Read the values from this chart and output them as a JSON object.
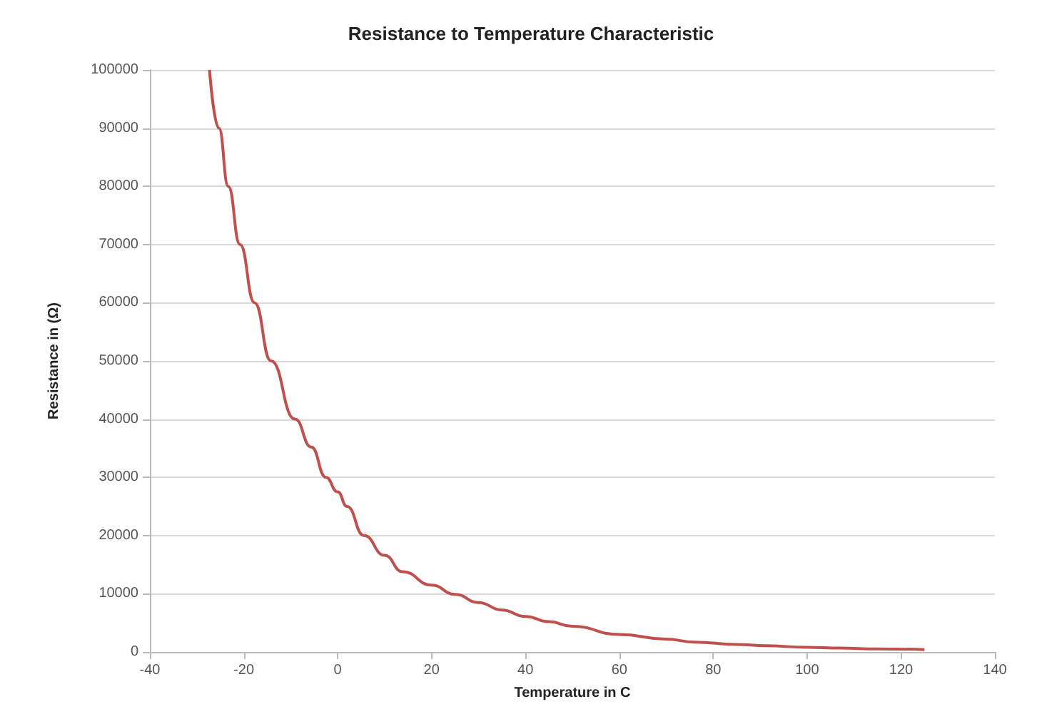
{
  "chart_data": {
    "type": "line",
    "title": "Resistance to Temperature Characteristic",
    "xlabel": "Temperature in C",
    "ylabel": "Resistance in (Ω)",
    "x": [
      -27.3,
      -25.3,
      -23.3,
      -20.8,
      -17.7,
      -14.2,
      -9.1,
      -5.6,
      -2.5,
      0,
      2,
      5.6,
      10,
      13.8,
      20,
      25,
      30,
      35,
      40,
      45,
      50,
      60,
      70,
      76,
      85,
      91,
      100,
      107,
      115,
      125
    ],
    "series": [
      {
        "color": "#c0504d",
        "values": [
          100000,
          90000,
          80000,
          70000,
          60000,
          50000,
          40000,
          35200,
          30000,
          27500,
          25000,
          20000,
          16600,
          13800,
          11500,
          9900,
          8500,
          7200,
          6100,
          5200,
          4400,
          3000,
          2200,
          1700,
          1300,
          1070,
          800,
          660,
          520,
          410
        ]
      }
    ],
    "xlim": [
      -40,
      140
    ],
    "xticks": [
      -40,
      -20,
      0,
      20,
      40,
      60,
      80,
      100,
      120,
      140
    ],
    "ylim": [
      0,
      100000
    ],
    "yticks": [
      0,
      10000,
      20000,
      30000,
      40000,
      50000,
      60000,
      70000,
      80000,
      90000,
      100000
    ],
    "grid": "y",
    "marker": "none",
    "line_style": "solid"
  }
}
